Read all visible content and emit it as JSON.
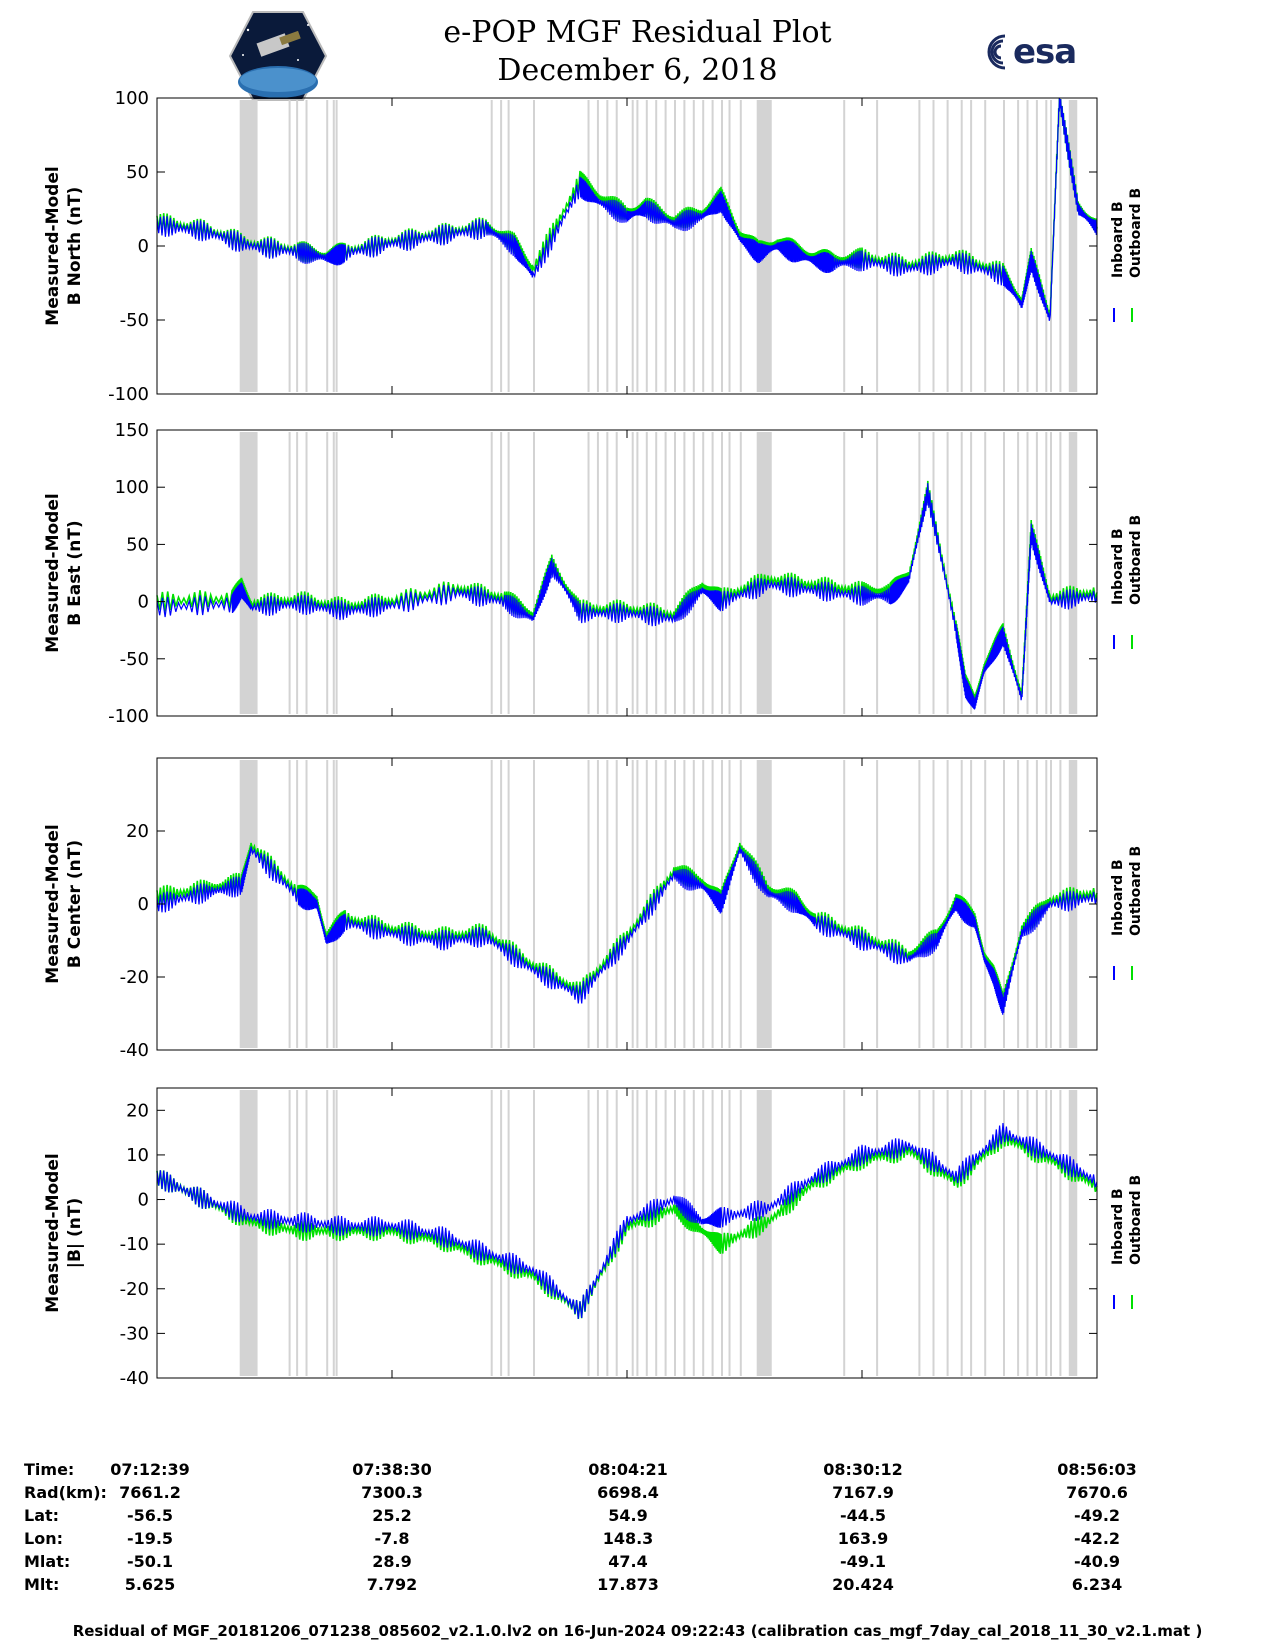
{
  "header": {
    "title_line1": "e-POP MGF Residual Plot",
    "title_line2": "December 6, 2018",
    "left_logo": "cassiope-mission-logo",
    "right_logo": "esa-logo",
    "right_logo_text": "esa"
  },
  "colors": {
    "inboard": "#0000ff",
    "outboard": "#00e000",
    "gap_shade": "#d3d3d3"
  },
  "chart_data": [
    {
      "type": "line",
      "ylabel_line1": "Measured-Model",
      "ylabel_line2": "B North (nT)",
      "ylim": [
        -100,
        100
      ],
      "yticks": [
        -100,
        -50,
        0,
        50,
        100
      ],
      "legend": [
        "Inboard B",
        "Outboard B"
      ],
      "legend_placement": "right",
      "series": [
        {
          "name": "Inboard B",
          "x": [
            0,
            5,
            10,
            15,
            18,
            20,
            25,
            30,
            35,
            38,
            40,
            45,
            47,
            50,
            52,
            55,
            58,
            60,
            62,
            64,
            66,
            68,
            70,
            72,
            75,
            80,
            85,
            90,
            92,
            93,
            95,
            96,
            98,
            100
          ],
          "y": [
            14,
            10,
            0,
            -4,
            -8,
            -5,
            2,
            7,
            12,
            0,
            -20,
            40,
            30,
            20,
            25,
            15,
            20,
            30,
            5,
            -5,
            0,
            -5,
            -10,
            -12,
            -10,
            -15,
            -10,
            -20,
            -40,
            -10,
            -50,
            100,
            25,
            12
          ]
        },
        {
          "name": "Outboard B",
          "x": [
            0,
            5,
            10,
            15,
            18,
            20,
            25,
            30,
            35,
            38,
            40,
            45,
            47,
            50,
            52,
            55,
            58,
            60,
            62,
            64,
            66,
            68,
            70,
            72,
            75,
            80,
            85,
            90,
            92,
            93,
            95,
            96,
            98,
            100
          ],
          "y": [
            16,
            11,
            1,
            -3,
            -7,
            -4,
            3,
            8,
            13,
            2,
            -16,
            44,
            33,
            22,
            27,
            17,
            22,
            33,
            8,
            -3,
            2,
            -3,
            -8,
            -10,
            -8,
            -13,
            -8,
            -18,
            -38,
            -8,
            -48,
            100,
            26,
            13
          ]
        }
      ]
    },
    {
      "type": "line",
      "ylabel_line1": "Measured-Model",
      "ylabel_line2": "B East (nT)",
      "ylim": [
        -100,
        150
      ],
      "yticks": [
        -100,
        -50,
        0,
        50,
        100,
        150
      ],
      "legend": [
        "Inboard B",
        "Outboard B"
      ],
      "legend_placement": "right",
      "series": [
        {
          "name": "Inboard B",
          "x": [
            0,
            8,
            9,
            10,
            15,
            20,
            25,
            32,
            37,
            40,
            42,
            45,
            50,
            55,
            58,
            60,
            65,
            70,
            75,
            78,
            79,
            80,
            82,
            85,
            86,
            87,
            88,
            89,
            90,
            92,
            93,
            95,
            100
          ],
          "y": [
            -5,
            -2,
            10,
            -5,
            -2,
            -8,
            -3,
            8,
            0,
            -15,
            30,
            -10,
            -10,
            -15,
            10,
            0,
            15,
            10,
            5,
            5,
            12,
            20,
            95,
            -25,
            -75,
            -90,
            -60,
            -45,
            -30,
            -85,
            60,
            0,
            5
          ]
        },
        {
          "name": "Outboard B",
          "x": [
            0,
            8,
            9,
            10,
            15,
            20,
            25,
            32,
            37,
            40,
            42,
            45,
            50,
            55,
            58,
            60,
            65,
            70,
            75,
            78,
            79,
            80,
            82,
            85,
            86,
            87,
            88,
            89,
            90,
            92,
            93,
            95,
            100
          ],
          "y": [
            0,
            2,
            14,
            -2,
            1,
            -5,
            0,
            11,
            3,
            -12,
            33,
            -7,
            -7,
            -12,
            14,
            3,
            19,
            14,
            9,
            9,
            15,
            23,
            97,
            -22,
            -72,
            -87,
            -57,
            -42,
            -27,
            -82,
            63,
            3,
            8
          ]
        }
      ]
    },
    {
      "type": "line",
      "ylabel_line1": "Measured-Model",
      "ylabel_line2": "B Center (nT)",
      "ylim": [
        -40,
        40
      ],
      "yticks": [
        -40,
        -20,
        0,
        20
      ],
      "legend": [
        "Inboard B",
        "Outboard B"
      ],
      "legend_placement": "right",
      "series": [
        {
          "name": "Inboard B",
          "x": [
            0,
            5,
            9,
            10,
            15,
            17,
            18,
            20,
            25,
            30,
            35,
            40,
            45,
            50,
            55,
            58,
            60,
            62,
            65,
            68,
            70,
            75,
            80,
            83,
            85,
            87,
            88,
            89,
            90,
            92,
            95,
            100
          ],
          "y": [
            0,
            3,
            5,
            15,
            2,
            0,
            -10,
            -5,
            -8,
            -10,
            -9,
            -18,
            -25,
            -10,
            8,
            5,
            0,
            15,
            3,
            0,
            -5,
            -10,
            -15,
            -10,
            0,
            -5,
            -15,
            -20,
            -28,
            -8,
            0,
            2
          ]
        },
        {
          "name": "Outboard B",
          "x": [
            0,
            5,
            9,
            10,
            15,
            17,
            18,
            20,
            25,
            30,
            35,
            40,
            45,
            50,
            55,
            58,
            60,
            62,
            65,
            68,
            70,
            75,
            80,
            83,
            85,
            87,
            88,
            89,
            90,
            92,
            95,
            100
          ],
          "y": [
            2,
            4,
            6,
            16,
            3,
            1,
            -9,
            -4,
            -7,
            -9,
            -8,
            -17,
            -24,
            -9,
            9,
            6,
            1,
            16,
            4,
            1,
            -4,
            -9,
            -14,
            -9,
            1,
            -4,
            -14,
            -19,
            -27,
            -7,
            1,
            3
          ]
        }
      ]
    },
    {
      "type": "line",
      "ylabel_line1": "Measured-Model",
      "ylabel_line2": "|B| (nT)",
      "ylim": [
        -40,
        25
      ],
      "yticks": [
        -40,
        -30,
        -20,
        -10,
        0,
        10,
        20
      ],
      "legend": [
        "Inboard B",
        "Outboard B"
      ],
      "legend_placement": "right",
      "series": [
        {
          "name": "Inboard B",
          "x": [
            0,
            5,
            10,
            15,
            20,
            25,
            30,
            35,
            40,
            45,
            50,
            55,
            58,
            60,
            65,
            70,
            75,
            80,
            85,
            90,
            95,
            100
          ],
          "y": [
            5,
            0,
            -4,
            -5,
            -6,
            -6,
            -8,
            -12,
            -16,
            -25,
            -5,
            0,
            -5,
            -4,
            -2,
            5,
            10,
            12,
            5,
            15,
            10,
            4
          ]
        },
        {
          "name": "Outboard B",
          "x": [
            0,
            5,
            10,
            15,
            20,
            25,
            30,
            35,
            40,
            45,
            50,
            55,
            58,
            60,
            65,
            70,
            75,
            80,
            85,
            90,
            95,
            100
          ],
          "y": [
            5,
            0,
            -5,
            -7,
            -7,
            -7,
            -9,
            -13,
            -17,
            -25,
            -6,
            -2,
            -7,
            -10,
            -5,
            4,
            9,
            11,
            4,
            14,
            9,
            3
          ]
        }
      ]
    }
  ],
  "time_axis": {
    "ticks": [
      "07:12:39",
      "07:38:30",
      "08:04:21",
      "08:30:12",
      "08:56:03"
    ]
  },
  "table": {
    "rows": [
      {
        "label": "Time:",
        "values": [
          "07:12:39",
          "07:38:30",
          "08:04:21",
          "08:30:12",
          "08:56:03"
        ]
      },
      {
        "label": "Rad(km):",
        "values": [
          "7661.2",
          "7300.3",
          "6698.4",
          "7167.9",
          "7670.6"
        ]
      },
      {
        "label": "Lat:",
        "values": [
          "-56.5",
          "25.2",
          "54.9",
          "-44.5",
          "-49.2"
        ]
      },
      {
        "label": "Lon:",
        "values": [
          "-19.5",
          "-7.8",
          "148.3",
          "163.9",
          "-42.2"
        ]
      },
      {
        "label": "Mlat:",
        "values": [
          "-50.1",
          "28.9",
          "47.4",
          "-49.1",
          "-40.9"
        ]
      },
      {
        "label": "Mlt:",
        "values": [
          "5.625",
          "7.792",
          "17.873",
          "20.424",
          "6.234"
        ]
      }
    ]
  },
  "footer": "Residual of MGF_20181206_071238_085602_v2.1.0.lv2 on 16-Jun-2024 09:22:43 (calibration cas_mgf_7day_cal_2018_11_30_v2.1.mat )"
}
